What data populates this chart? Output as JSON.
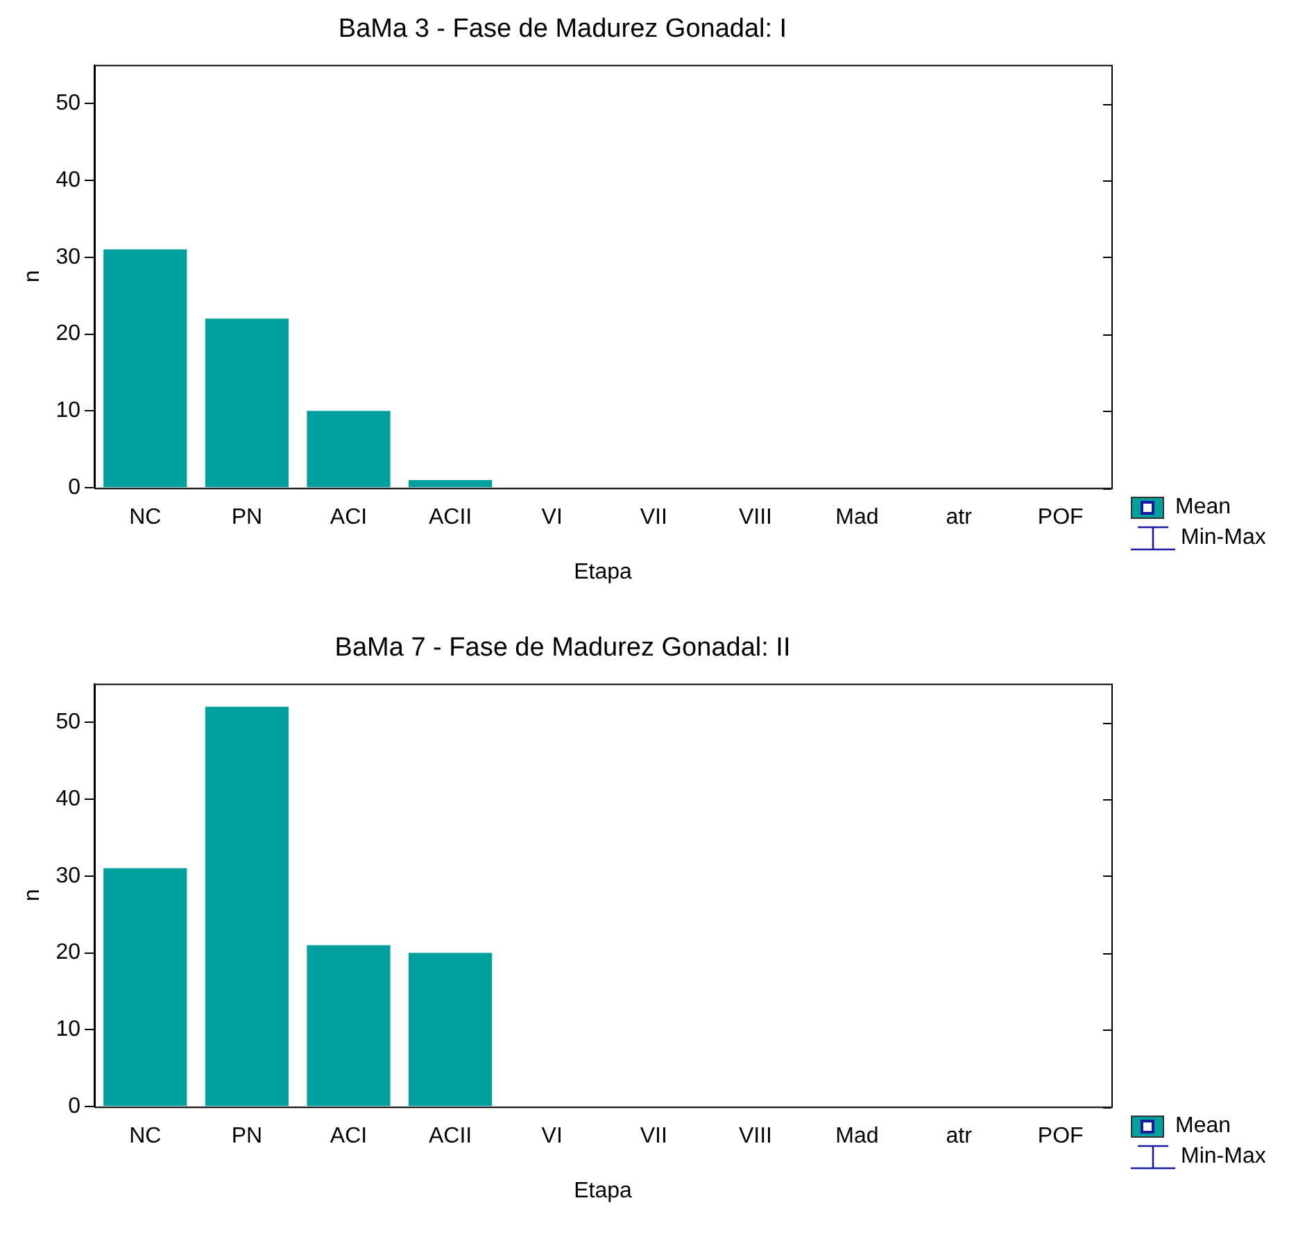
{
  "chart_data": [
    {
      "type": "bar",
      "title": "BaMa 3 - Fase de Madurez Gonadal: I",
      "xlabel": "Etapa",
      "ylabel": "n",
      "categories": [
        "NC",
        "PN",
        "ACI",
        "ACII",
        "VI",
        "VII",
        "VIII",
        "Mad",
        "atr",
        "POF"
      ],
      "series": [
        {
          "name": "Mean",
          "color": "#00a09e",
          "values": [
            31,
            22,
            10,
            1,
            0,
            0,
            0,
            0,
            0,
            0
          ]
        }
      ],
      "ylim": [
        0,
        55
      ],
      "yticks": [
        0,
        10,
        20,
        30,
        40,
        50
      ],
      "grid": false,
      "legend": "bottom right",
      "annotations": [
        "Min-Max"
      ]
    },
    {
      "type": "bar",
      "title": "BaMa 7 - Fase de Madurez Gonadal: II",
      "xlabel": "Etapa",
      "ylabel": "n",
      "categories": [
        "NC",
        "PN",
        "ACI",
        "ACII",
        "VI",
        "VII",
        "VIII",
        "Mad",
        "atr",
        "POF"
      ],
      "series": [
        {
          "name": "Mean",
          "color": "#00a09e",
          "values": [
            31,
            52,
            21,
            20,
            0,
            0,
            0,
            0,
            0,
            0
          ]
        }
      ],
      "ylim": [
        0,
        55
      ],
      "yticks": [
        0,
        10,
        20,
        30,
        40,
        50
      ],
      "grid": false,
      "legend": "bottom right",
      "annotations": [
        "Min-Max"
      ]
    }
  ]
}
